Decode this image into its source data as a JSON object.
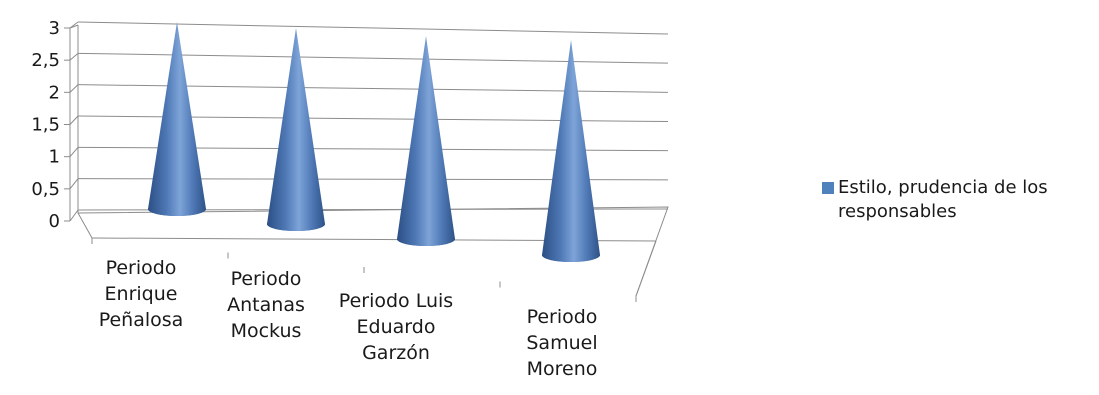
{
  "chart_data": {
    "type": "bar",
    "shape": "cone",
    "categories": [
      "Periodo Enrique Peñalosa",
      "Periodo Antanas Mockus",
      "Periodo Luis Eduardo Garzón",
      "Periodo Samuel Moreno"
    ],
    "series": [
      {
        "name": "Estilo, prudencia de los responsables",
        "values": [
          3,
          3,
          3,
          3
        ],
        "color": "#4f81bd"
      }
    ],
    "yticks": [
      "0",
      "0,5",
      "1",
      "1,5",
      "2",
      "2,5",
      "3"
    ],
    "ylim": [
      0,
      3
    ],
    "grid": true,
    "legend_position": "right",
    "title": "",
    "xlabel": "",
    "ylabel": ""
  }
}
